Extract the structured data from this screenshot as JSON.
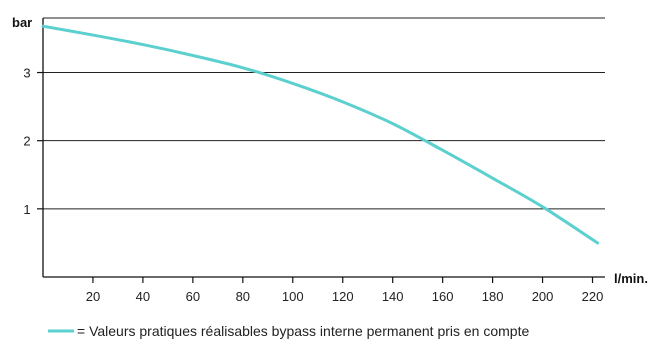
{
  "chart_data": {
    "type": "line",
    "title": "",
    "xlabel": "l/min.",
    "ylabel": "bar",
    "xlim": [
      0,
      225
    ],
    "ylim": [
      0,
      3.8
    ],
    "x_ticks": [
      20,
      40,
      60,
      80,
      100,
      120,
      140,
      160,
      180,
      200,
      220
    ],
    "y_ticks": [
      1,
      2,
      3
    ],
    "grid": "horizontal",
    "legend_position": "bottom",
    "series": [
      {
        "name": "= Valeurs pratiques réalisables bypass interne permanent pris en compte",
        "color": "#5ccfcf",
        "x": [
          0,
          20,
          40,
          60,
          80,
          100,
          120,
          140,
          160,
          180,
          200,
          222
        ],
        "y": [
          3.68,
          3.55,
          3.41,
          3.25,
          3.07,
          2.84,
          2.57,
          2.25,
          1.86,
          1.45,
          1.03,
          0.5
        ]
      }
    ]
  }
}
